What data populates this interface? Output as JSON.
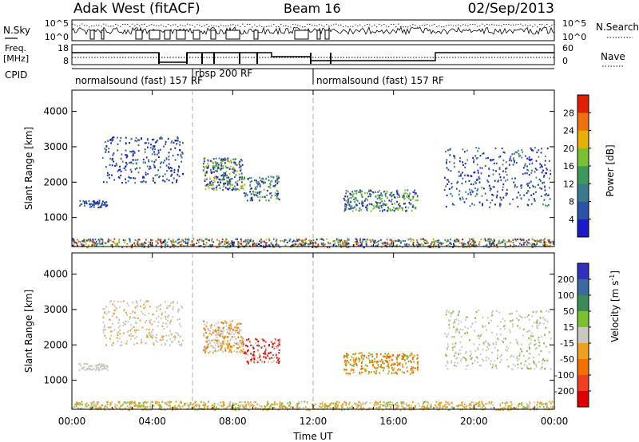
{
  "header": {
    "station": "Adak West (fitACF)",
    "beam": "Beam 16",
    "date": "02/Sep/2013"
  },
  "top_panels": {
    "nsky_label": "N.Sky",
    "nsearch_label": "N.Search",
    "nsky_ticks": [
      "10^5",
      "10^0"
    ],
    "nsearch_ticks": [
      "10^5",
      "10^0"
    ],
    "freq_label_line1": "Freq.",
    "freq_label_line2": "[MHz]",
    "freq_ticks": [
      "18",
      "8"
    ],
    "nave_label": "Nave",
    "nave_ticks": [
      "60",
      "0"
    ],
    "cpid_label": "CPID",
    "cpid_segments": [
      {
        "text": "normalsound (fast) 157 RF",
        "start_hour": 0
      },
      {
        "text": "rbsp 200 RF",
        "start_hour": 6
      },
      {
        "text": "normalsound (fast) 157 RF",
        "start_hour": 12
      }
    ]
  },
  "colors": {
    "power_scale": [
      "#1a1acc",
      "#2a52a8",
      "#3a7a8a",
      "#3a9a5a",
      "#7ac030",
      "#e8b000",
      "#f07010",
      "#e02000"
    ],
    "velocity_scale": [
      "#3030c0",
      "#3a6aa0",
      "#3a8a5a",
      "#7ac030",
      "#c8c8c0",
      "#f0a020",
      "#f07000",
      "#f04020",
      "#e00000"
    ]
  },
  "chart_data": [
    {
      "type": "heatmap",
      "quantity": "Power",
      "ylabel": "Slant Range [km]",
      "xlim": [
        0,
        24
      ],
      "ylim": [
        180,
        4600
      ],
      "yticks": [
        "1000",
        "2000",
        "3000",
        "4000"
      ],
      "colorbar_label": "Power [dB]",
      "colorbar_ticks": [
        "4",
        "8",
        "12",
        "16",
        "20",
        "24",
        "28"
      ],
      "colorbar_range": [
        0,
        32
      ]
    },
    {
      "type": "heatmap",
      "quantity": "Velocity",
      "ylabel": "Slant Range [km]",
      "xlabel": "Time UT",
      "xlim": [
        0,
        24
      ],
      "ylim": [
        180,
        4600
      ],
      "xticks": [
        "00:00",
        "04:00",
        "08:00",
        "12:00",
        "16:00",
        "20:00",
        "00:00"
      ],
      "yticks": [
        "1000",
        "2000",
        "3000",
        "4000"
      ],
      "colorbar_label": "Velocity [m s",
      "colorbar_label_sup": "-1",
      "colorbar_ticks": [
        "200",
        "100",
        "50",
        "15",
        "-15",
        "-50",
        "-100",
        "-200"
      ]
    }
  ]
}
